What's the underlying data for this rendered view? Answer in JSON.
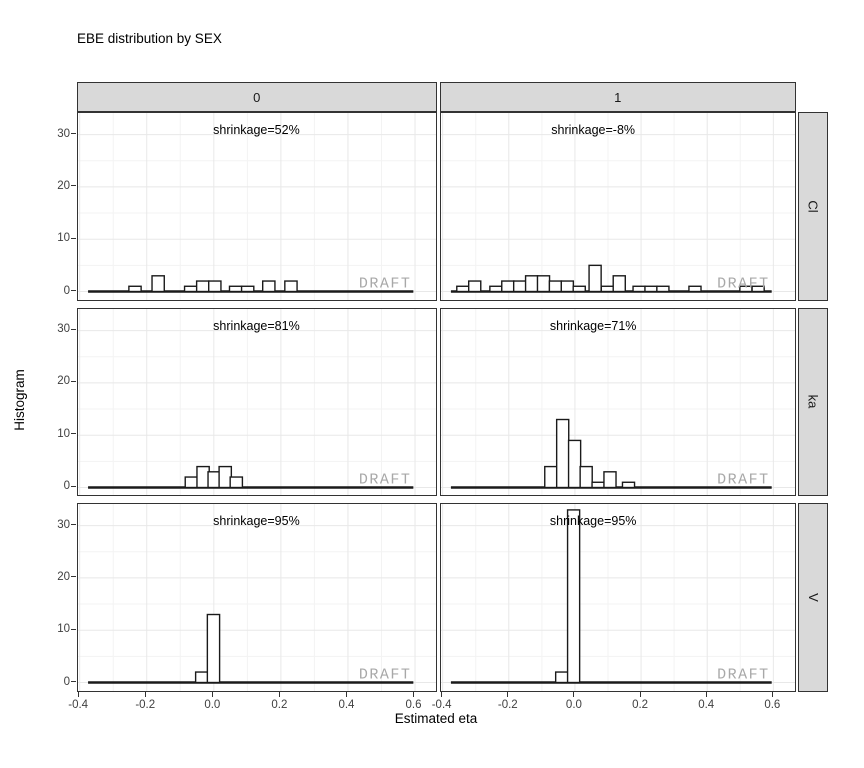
{
  "chart_data": {
    "type": "histogram",
    "title": "EBE distribution by SEX",
    "xlabel": "Estimated eta",
    "ylabel": "Histogram",
    "watermark": "DRAFT",
    "facet_cols": [
      "0",
      "1"
    ],
    "facet_rows": [
      "Cl",
      "ka",
      "V"
    ],
    "x_tick_labels": [
      "-0.4",
      "-0.2",
      "0.0",
      "0.2",
      "0.4",
      "0.6"
    ],
    "x_tick_values": [
      -0.4,
      -0.2,
      0.0,
      0.2,
      0.4,
      0.6
    ],
    "x_minor_ticks": [
      -0.3,
      -0.1,
      0.1,
      0.3,
      0.5
    ],
    "y_ticks": [
      0,
      10,
      20,
      30
    ],
    "y_minor_ticks": [
      5,
      15,
      25
    ],
    "xlim": [
      -0.405,
      0.67
    ],
    "ylim": [
      0,
      34.2
    ],
    "binwidth": 0.0365,
    "baseline_extent": [
      -0.375,
      0.595
    ],
    "grid": true,
    "legend": "none",
    "colors": {
      "strip_fill": "#d9d9d9",
      "panel_border": "#333333",
      "grid_major": "#e8e8e8",
      "grid_minor": "#f3f3f3",
      "bar_fill": "#ffffff",
      "bar_stroke": "#1a1a1a",
      "watermark": "#a8a8a8",
      "tick_label": "#404040"
    },
    "panels": [
      {
        "row": "Cl",
        "col": "0",
        "shrinkage": "shrinkage=52%",
        "label_fx": 0.495,
        "bars": [
          {
            "x": -0.235,
            "h": 1
          },
          {
            "x": -0.166,
            "h": 3
          },
          {
            "x": -0.069,
            "h": 1
          },
          {
            "x": -0.033,
            "h": 2
          },
          {
            "x": 0.003,
            "h": 2
          },
          {
            "x": 0.065,
            "h": 1
          },
          {
            "x": 0.101,
            "h": 1
          },
          {
            "x": 0.164,
            "h": 2
          },
          {
            "x": 0.23,
            "h": 2
          }
        ]
      },
      {
        "row": "Cl",
        "col": "1",
        "shrinkage": "shrinkage=-8%",
        "label_fx": 0.428,
        "bars": [
          {
            "x": -0.339,
            "h": 1
          },
          {
            "x": -0.303,
            "h": 2
          },
          {
            "x": -0.239,
            "h": 1
          },
          {
            "x": -0.203,
            "h": 2
          },
          {
            "x": -0.167,
            "h": 2
          },
          {
            "x": -0.131,
            "h": 3
          },
          {
            "x": -0.095,
            "h": 3
          },
          {
            "x": -0.059,
            "h": 2
          },
          {
            "x": -0.023,
            "h": 2
          },
          {
            "x": 0.013,
            "h": 1
          },
          {
            "x": 0.061,
            "h": 5
          },
          {
            "x": 0.098,
            "h": 1
          },
          {
            "x": 0.134,
            "h": 3
          },
          {
            "x": 0.194,
            "h": 1
          },
          {
            "x": 0.23,
            "h": 1
          },
          {
            "x": 0.266,
            "h": 1
          },
          {
            "x": 0.363,
            "h": 1
          },
          {
            "x": 0.517,
            "h": 1
          },
          {
            "x": 0.554,
            "h": 1
          }
        ]
      },
      {
        "row": "ka",
        "col": "0",
        "shrinkage": "shrinkage=81%",
        "label_fx": 0.495,
        "bars": [
          {
            "x": -0.067,
            "h": 2
          },
          {
            "x": -0.032,
            "h": 4
          },
          {
            "x": 0.001,
            "h": 3
          },
          {
            "x": 0.034,
            "h": 4
          },
          {
            "x": 0.067,
            "h": 2
          }
        ]
      },
      {
        "row": "ka",
        "col": "1",
        "shrinkage": "shrinkage=71%",
        "label_fx": 0.428,
        "bars": [
          {
            "x": -0.073,
            "h": 4
          },
          {
            "x": -0.037,
            "h": 13
          },
          {
            "x": -0.001,
            "h": 9
          },
          {
            "x": 0.034,
            "h": 4
          },
          {
            "x": 0.07,
            "h": 1
          },
          {
            "x": 0.106,
            "h": 3
          },
          {
            "x": 0.162,
            "h": 1
          }
        ]
      },
      {
        "row": "V",
        "col": "0",
        "shrinkage": "shrinkage=95%",
        "label_fx": 0.495,
        "bars": [
          {
            "x": -0.036,
            "h": 2
          },
          {
            "x": -0.001,
            "h": 13
          }
        ]
      },
      {
        "row": "V",
        "col": "1",
        "shrinkage": "shrinkage=95%",
        "label_fx": 0.428,
        "bars": [
          {
            "x": -0.04,
            "h": 2
          },
          {
            "x": -0.004,
            "h": 33
          }
        ]
      }
    ]
  }
}
